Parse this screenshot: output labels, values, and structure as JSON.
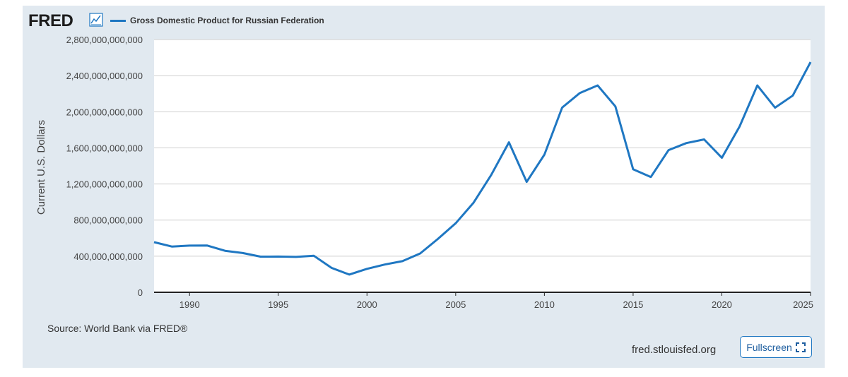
{
  "header": {
    "logo_text": "FRED",
    "logo_icon": "line-chart-icon",
    "legend_label": "Gross Domestic Product for Russian Federation"
  },
  "footer": {
    "source": "Source: World Bank via FRED®",
    "site_url": "fred.stlouisfed.org",
    "fullscreen_label": "Fullscreen",
    "fullscreen_icon": "expand-icon"
  },
  "colors": {
    "background": "#e1e9f0",
    "series": "#1f77c2",
    "grid": "#cfcfcf"
  },
  "chart_data": {
    "type": "line",
    "title": "",
    "xlabel": "",
    "ylabel": "Current U.S. Dollars",
    "xlim": [
      1988,
      2025
    ],
    "ylim": [
      0,
      2800000000000
    ],
    "x_ticks": [
      "1990",
      "1995",
      "2000",
      "2005",
      "2010",
      "2015",
      "2020",
      "2025"
    ],
    "y_ticks": [
      "0",
      "400,000,000,000",
      "800,000,000,000",
      "1,200,000,000,000",
      "1,600,000,000,000",
      "2,000,000,000,000",
      "2,400,000,000,000",
      "2,800,000,000,000"
    ],
    "grid": true,
    "series": [
      {
        "name": "Gross Domestic Product for Russian Federation",
        "x": [
          1988,
          1989,
          1990,
          1991,
          1992,
          1993,
          1994,
          1995,
          1996,
          1997,
          1998,
          1999,
          2000,
          2001,
          2002,
          2003,
          2004,
          2005,
          2006,
          2007,
          2008,
          2009,
          2010,
          2011,
          2012,
          2013,
          2014,
          2015,
          2016,
          2017,
          2018,
          2019,
          2020,
          2021,
          2022,
          2023,
          2024,
          2025
        ],
        "values": [
          555000000000,
          507000000000,
          517000000000,
          518000000000,
          460000000000,
          435000000000,
          395000000000,
          396000000000,
          392000000000,
          405000000000,
          271000000000,
          196000000000,
          260000000000,
          307000000000,
          345000000000,
          430000000000,
          591000000000,
          764000000000,
          990000000000,
          1300000000000,
          1661000000000,
          1223000000000,
          1525000000000,
          2046000000000,
          2208000000000,
          2292000000000,
          2059000000000,
          1363000000000,
          1277000000000,
          1575000000000,
          1653000000000,
          1693000000000,
          1490000000000,
          1837000000000,
          2292000000000,
          2045000000000,
          2180000000000,
          2550000000000
        ]
      }
    ]
  }
}
